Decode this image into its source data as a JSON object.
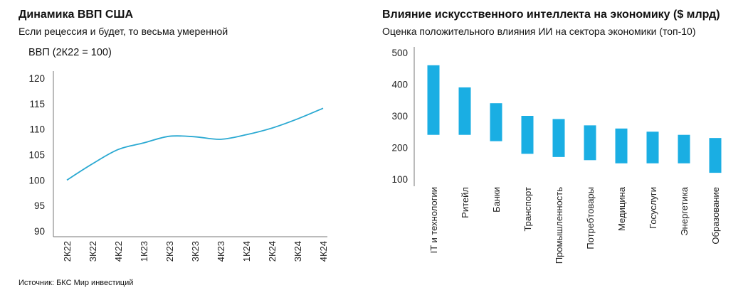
{
  "left_panel": {
    "title": "Динамика ВВП США",
    "subtitle": "Если рецессия и будет, то весьма умеренной",
    "unit_label": "ВВП (2К22 = 100)",
    "source": "Источник: БКС Мир инвестиций"
  },
  "right_panel": {
    "title": "Влияние искусственного интеллекта на экономику ($ млрд)",
    "subtitle": "Оценка положительного влияния ИИ на сектора экономики (топ-10)"
  },
  "chart_data": [
    {
      "type": "line",
      "title": "Динамика ВВП США",
      "subtitle": "Если рецессия и будет, то весьма умеренной",
      "ylabel": "ВВП (2К22 = 100)",
      "categories": [
        "2К22",
        "3К22",
        "4К22",
        "1К23",
        "2К23",
        "3К23",
        "4К23",
        "1К24",
        "2К24",
        "3К24",
        "4К24"
      ],
      "series": [
        {
          "values": [
            100,
            103.2,
            106,
            107.3,
            108.6,
            108.5,
            108,
            108.9,
            110.2,
            112,
            114.1
          ],
          "color": "#2aa9d2"
        }
      ],
      "ylim": [
        90,
        120
      ],
      "yticks": [
        90,
        95,
        100,
        105,
        110,
        115,
        120
      ],
      "grid": false
    },
    {
      "type": "bar",
      "title": "Влияние искусственного интеллекта на экономику ($ млрд)",
      "subtitle": "Оценка положительного влияния ИИ на сектора экономики (топ-10)",
      "categories": [
        "IT и технологии",
        "Ритейл",
        "Банки",
        "Транспорт",
        "Промышленность",
        "Потребтовары",
        "Медицина",
        "Госуслуги",
        "Энергетика",
        "Образование"
      ],
      "series": [
        {
          "low": [
            240,
            240,
            220,
            180,
            170,
            160,
            150,
            150,
            150,
            120
          ],
          "high": [
            460,
            390,
            340,
            300,
            290,
            270,
            260,
            250,
            240,
            230
          ],
          "color": "#1aaee3"
        }
      ],
      "ylim": [
        100,
        500
      ],
      "yticks": [
        100,
        200,
        300,
        400,
        500
      ],
      "grid": false
    }
  ]
}
